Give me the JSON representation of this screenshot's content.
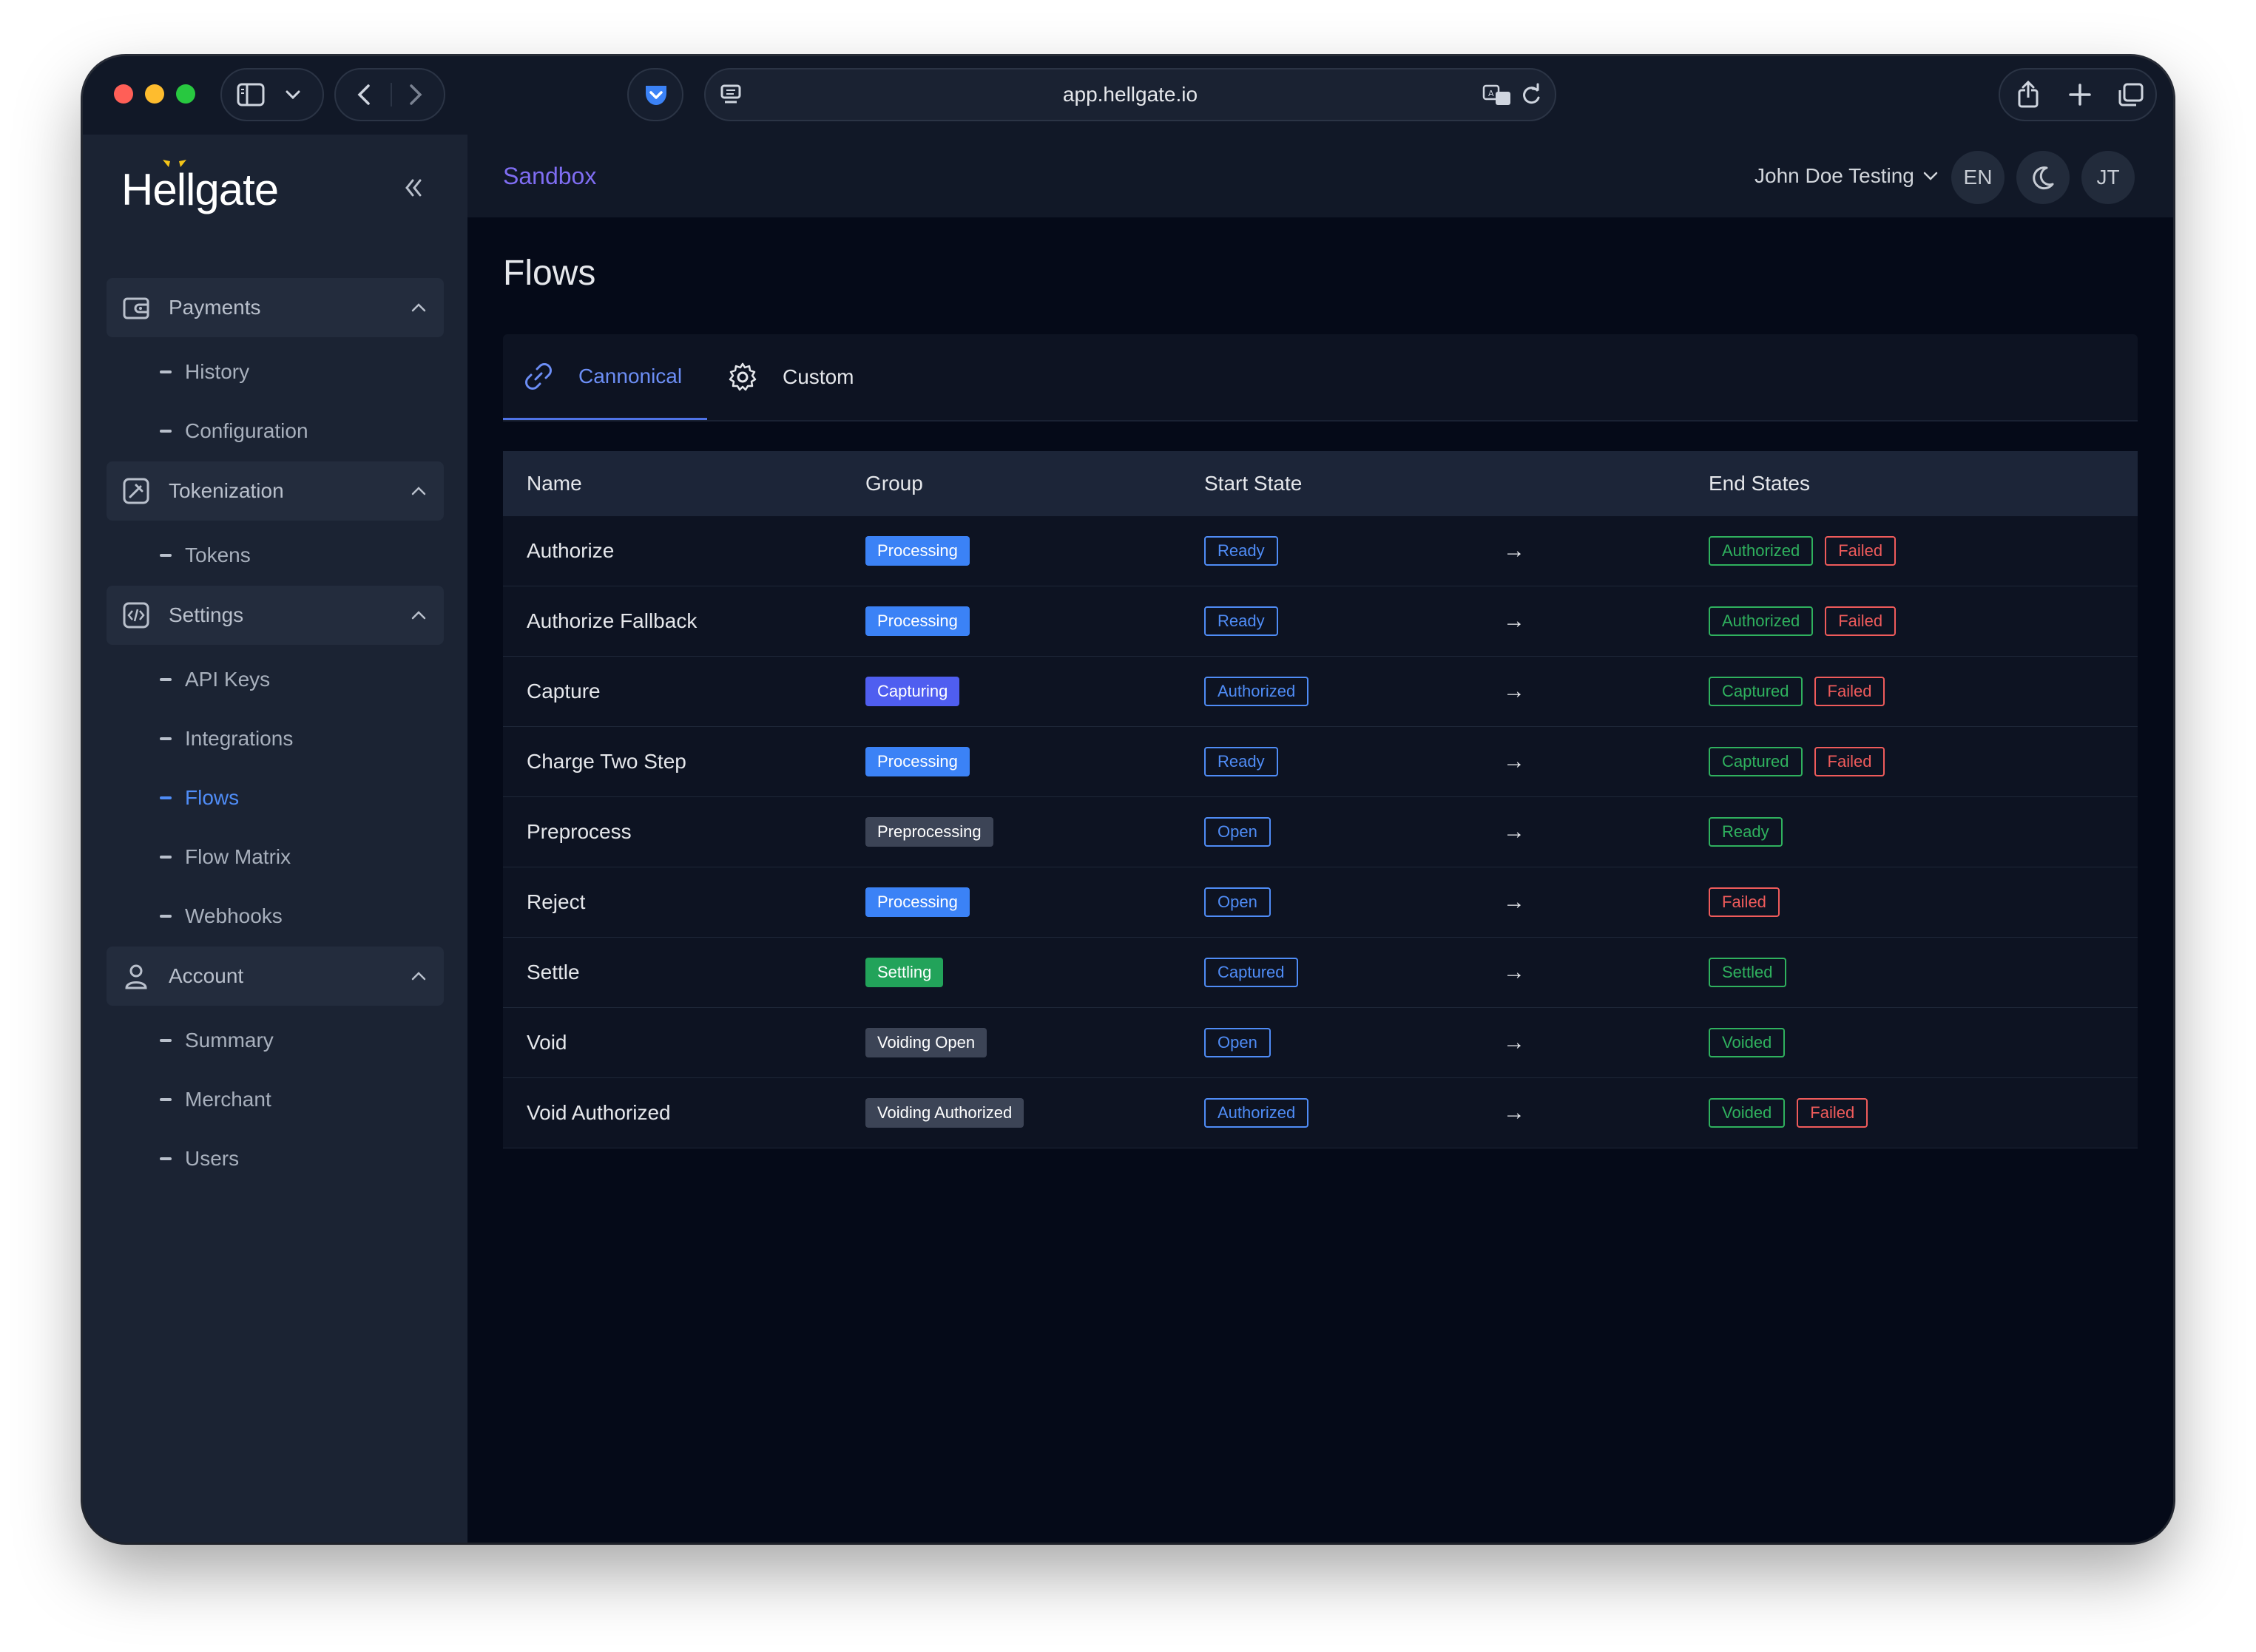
{
  "browser": {
    "url": "app.hellgate.io"
  },
  "sidebar": {
    "logo": "Hellgate",
    "groups": [
      {
        "label": "Payments",
        "icon": "wallet-icon",
        "items": [
          {
            "label": "History"
          },
          {
            "label": "Configuration"
          }
        ]
      },
      {
        "label": "Tokenization",
        "icon": "token-icon",
        "items": [
          {
            "label": "Tokens"
          }
        ]
      },
      {
        "label": "Settings",
        "icon": "code-icon",
        "items": [
          {
            "label": "API Keys"
          },
          {
            "label": "Integrations"
          },
          {
            "label": "Flows",
            "active": true
          },
          {
            "label": "Flow Matrix"
          },
          {
            "label": "Webhooks"
          }
        ]
      },
      {
        "label": "Account",
        "icon": "user-icon",
        "items": [
          {
            "label": "Summary"
          },
          {
            "label": "Merchant"
          },
          {
            "label": "Users"
          }
        ]
      }
    ]
  },
  "header": {
    "environment": "Sandbox",
    "user_name": "John Doe Testing",
    "language": "EN",
    "avatar_initials": "JT"
  },
  "main": {
    "title": "Flows",
    "tabs": [
      {
        "label": "Cannonical",
        "icon": "link-icon",
        "active": true
      },
      {
        "label": "Custom",
        "icon": "gear-icon",
        "active": false
      }
    ],
    "columns": [
      "Name",
      "Group",
      "Start State",
      "End States"
    ],
    "arrow": "→",
    "rows": [
      {
        "name": "Authorize",
        "group": "Processing",
        "start": "Ready",
        "ends": [
          "Authorized",
          "Failed"
        ]
      },
      {
        "name": "Authorize Fallback",
        "group": "Processing",
        "start": "Ready",
        "ends": [
          "Authorized",
          "Failed"
        ]
      },
      {
        "name": "Capture",
        "group": "Capturing",
        "start": "Authorized",
        "ends": [
          "Captured",
          "Failed"
        ]
      },
      {
        "name": "Charge Two Step",
        "group": "Processing",
        "start": "Ready",
        "ends": [
          "Captured",
          "Failed"
        ]
      },
      {
        "name": "Preprocess",
        "group": "Preprocessing",
        "start": "Open",
        "ends": [
          "Ready"
        ]
      },
      {
        "name": "Reject",
        "group": "Processing",
        "start": "Open",
        "ends": [
          "Failed"
        ]
      },
      {
        "name": "Settle",
        "group": "Settling",
        "start": "Captured",
        "ends": [
          "Settled"
        ]
      },
      {
        "name": "Void",
        "group": "Voiding Open",
        "start": "Open",
        "ends": [
          "Voided"
        ]
      },
      {
        "name": "Void Authorized",
        "group": "Voiding Authorized",
        "start": "Authorized",
        "ends": [
          "Voided",
          "Failed"
        ]
      }
    ]
  },
  "colors": {
    "group": {
      "Processing": "#3b82f6",
      "Capturing": "#4f5ef0",
      "Preprocessing": "#3c4456",
      "Settling": "#22a35a",
      "Voiding Open": "#3c4456",
      "Voiding Authorized": "#3c4456"
    },
    "start_state": "#4f8cf6",
    "end_success": "#2fb15e",
    "end_failed": "#ef5b5b"
  }
}
